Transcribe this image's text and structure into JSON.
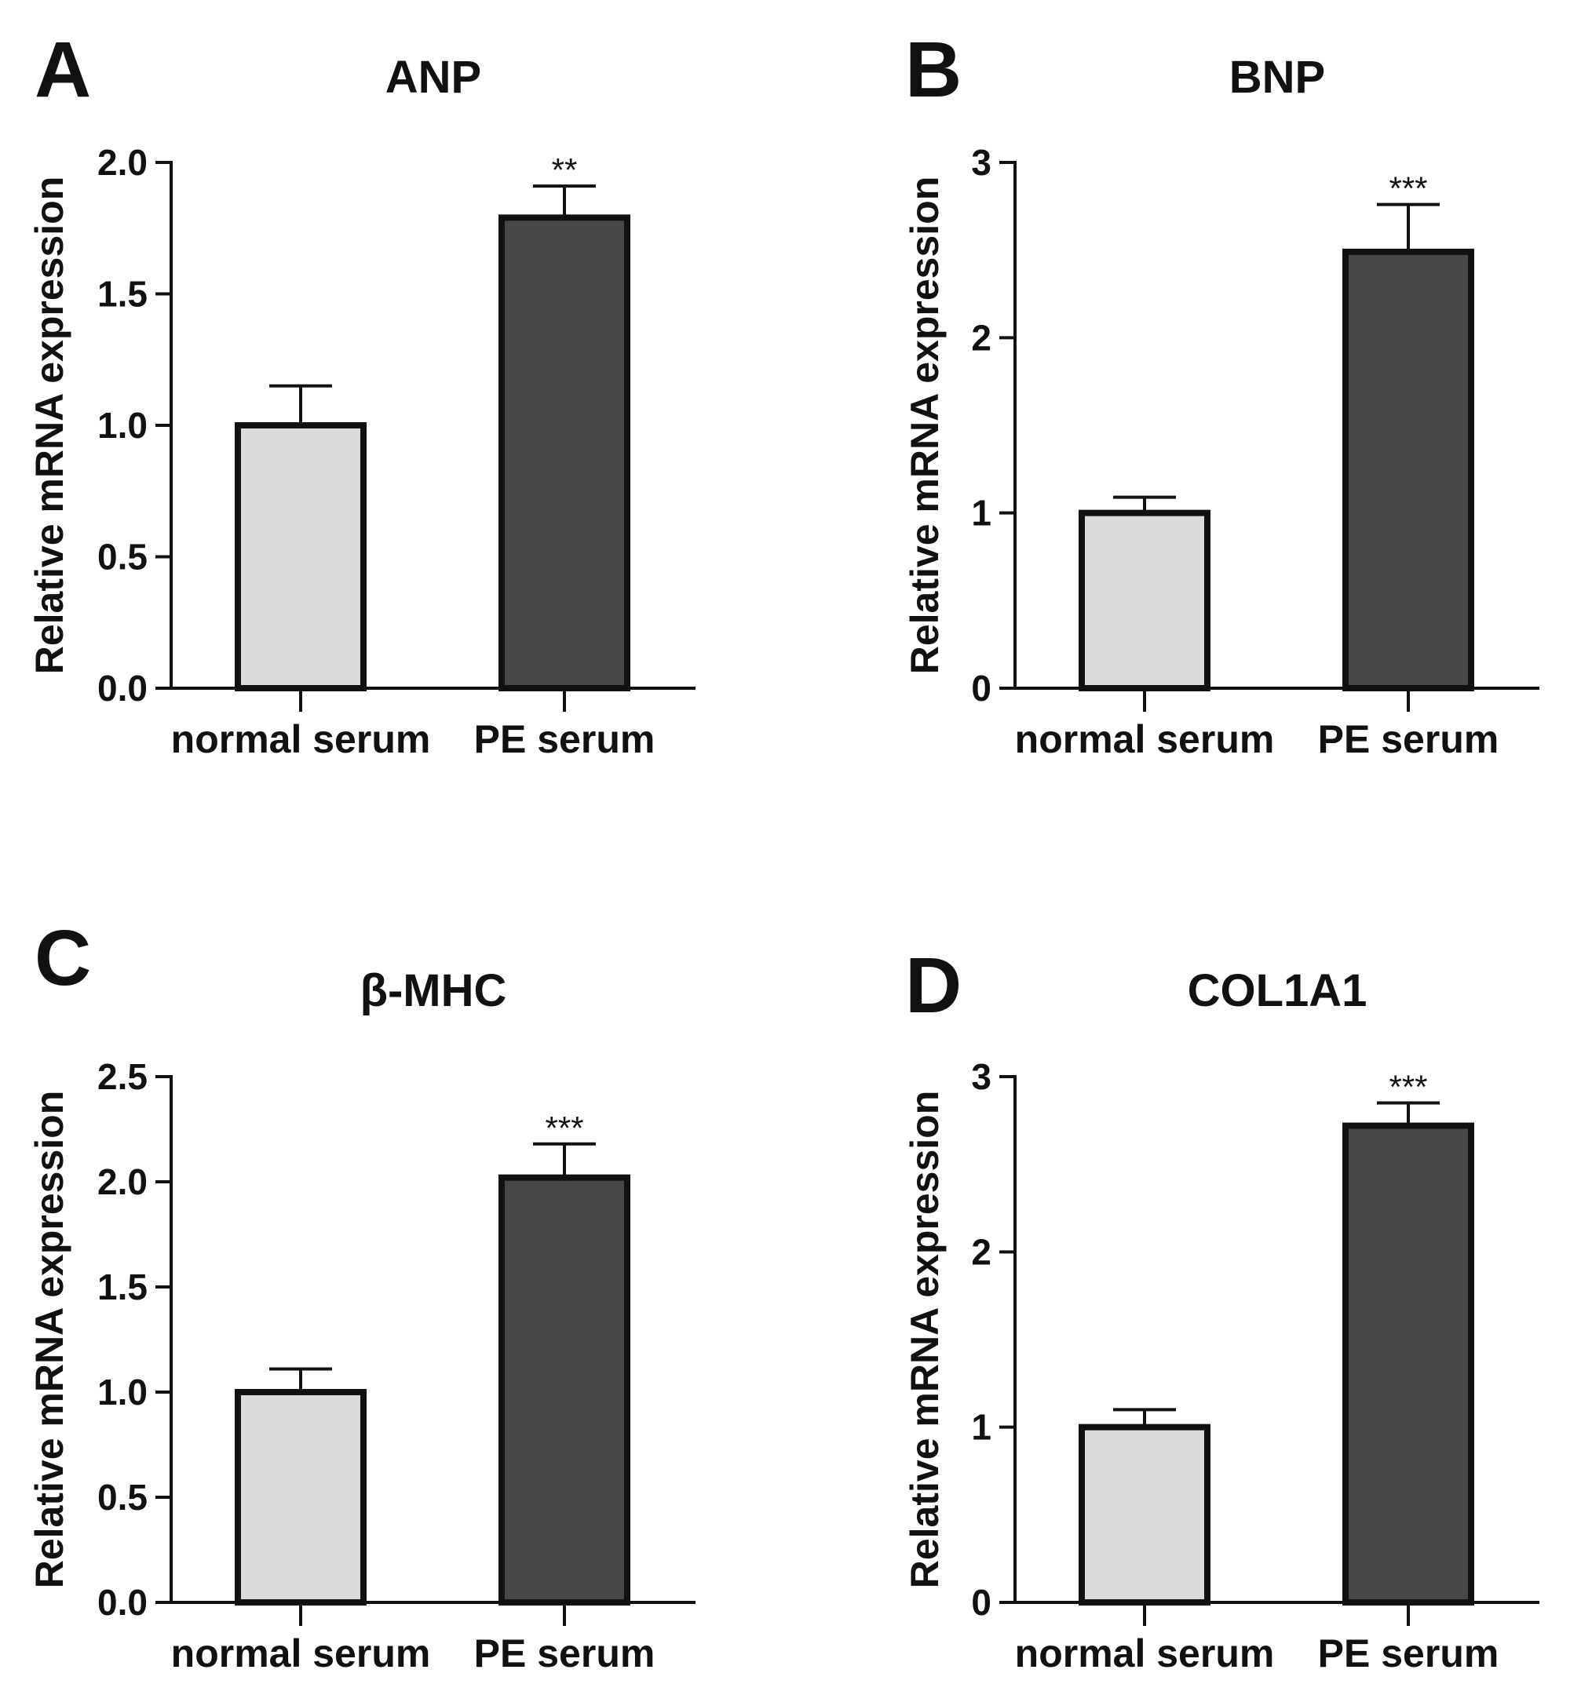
{
  "figure": {
    "colors": {
      "normal": "#dadada",
      "pe": "#474747",
      "stroke": "#111111",
      "background": "#ffffff"
    }
  },
  "chart_data": [
    {
      "panel": "A",
      "type": "bar",
      "title": "ANP",
      "ylabel": "Relative mRNA expression",
      "xlabel": "",
      "categories": [
        "normal serum",
        "PE serum"
      ],
      "values": [
        1.0,
        1.79
      ],
      "errors": [
        0.15,
        0.12
      ],
      "significance": [
        "",
        "**"
      ],
      "ylim": [
        0,
        2.0
      ],
      "yticks": [
        0,
        0.5,
        1.0,
        1.5,
        2.0
      ],
      "ytick_labels": [
        "0.0",
        "0.5",
        "1.0",
        "1.5",
        "2.0"
      ]
    },
    {
      "panel": "B",
      "type": "bar",
      "title": "BNP",
      "ylabel": "Relative mRNA expression",
      "xlabel": "",
      "categories": [
        "normal serum",
        "PE serum"
      ],
      "values": [
        1.0,
        2.49
      ],
      "errors": [
        0.09,
        0.27
      ],
      "significance": [
        "",
        "***"
      ],
      "ylim": [
        0,
        3
      ],
      "yticks": [
        0,
        1,
        2,
        3
      ],
      "ytick_labels": [
        "0",
        "1",
        "2",
        "3"
      ]
    },
    {
      "panel": "C",
      "type": "bar",
      "title": "β-MHC",
      "ylabel": "Relative mRNA expression",
      "xlabel": "",
      "categories": [
        "normal serum",
        "PE serum"
      ],
      "values": [
        1.0,
        2.02
      ],
      "errors": [
        0.11,
        0.16
      ],
      "significance": [
        "",
        "***"
      ],
      "ylim": [
        0,
        2.5
      ],
      "yticks": [
        0,
        0.5,
        1.0,
        1.5,
        2.0,
        2.5
      ],
      "ytick_labels": [
        "0.0",
        "0.5",
        "1.0",
        "1.5",
        "2.0",
        "2.5"
      ]
    },
    {
      "panel": "D",
      "type": "bar",
      "title": "COL1A1",
      "ylabel": "Relative mRNA expression",
      "xlabel": "",
      "categories": [
        "normal serum",
        "PE serum"
      ],
      "values": [
        1.0,
        2.72
      ],
      "errors": [
        0.1,
        0.13
      ],
      "significance": [
        "",
        "***"
      ],
      "ylim": [
        0,
        3
      ],
      "yticks": [
        0,
        1,
        2,
        3
      ],
      "ytick_labels": [
        "0",
        "1",
        "2",
        "3"
      ]
    }
  ]
}
